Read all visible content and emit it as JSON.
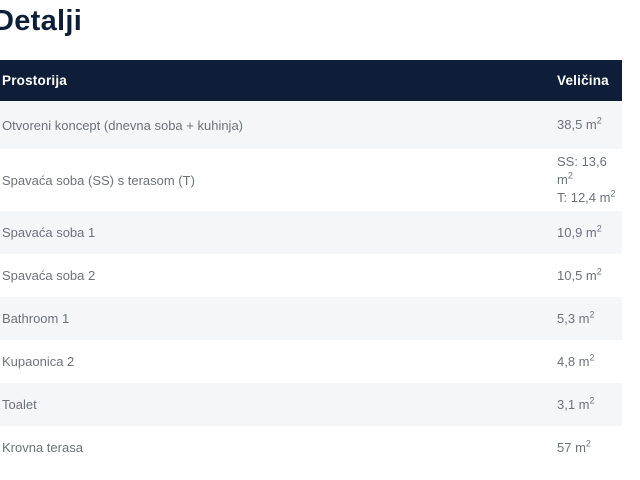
{
  "page_title": "Detalji",
  "colors": {
    "title": "#0e1e38",
    "header_bg": "#0e1e38",
    "header_text": "#ffffff",
    "row_alt_bg": "#f5f6fa",
    "body_text": "#6c727c",
    "page_bg": "#ffffff"
  },
  "table": {
    "columns": [
      {
        "label": "Prostorija"
      },
      {
        "label": "Veličina"
      }
    ],
    "rows": [
      {
        "room": "Otvoreni koncept (dnevna soba + kuhinja)",
        "sizes": [
          "38,5 m²"
        ]
      },
      {
        "room": "Spavaća soba (SS) s terasom (T)",
        "sizes": [
          "SS: 13,6 m²",
          "T: 12,4 m²"
        ]
      },
      {
        "room": "Spavaća soba 1",
        "sizes": [
          "10,9 m²"
        ]
      },
      {
        "room": "Spavaća soba 2",
        "sizes": [
          "10,5 m²"
        ]
      },
      {
        "room": "Bathroom 1",
        "sizes": [
          "5,3 m²"
        ]
      },
      {
        "room": "Kupaonica 2",
        "sizes": [
          "4,8 m²"
        ]
      },
      {
        "room": "Toalet",
        "sizes": [
          "3,1 m²"
        ]
      },
      {
        "room": "Krovna terasa",
        "sizes": [
          "57 m²"
        ]
      }
    ]
  }
}
